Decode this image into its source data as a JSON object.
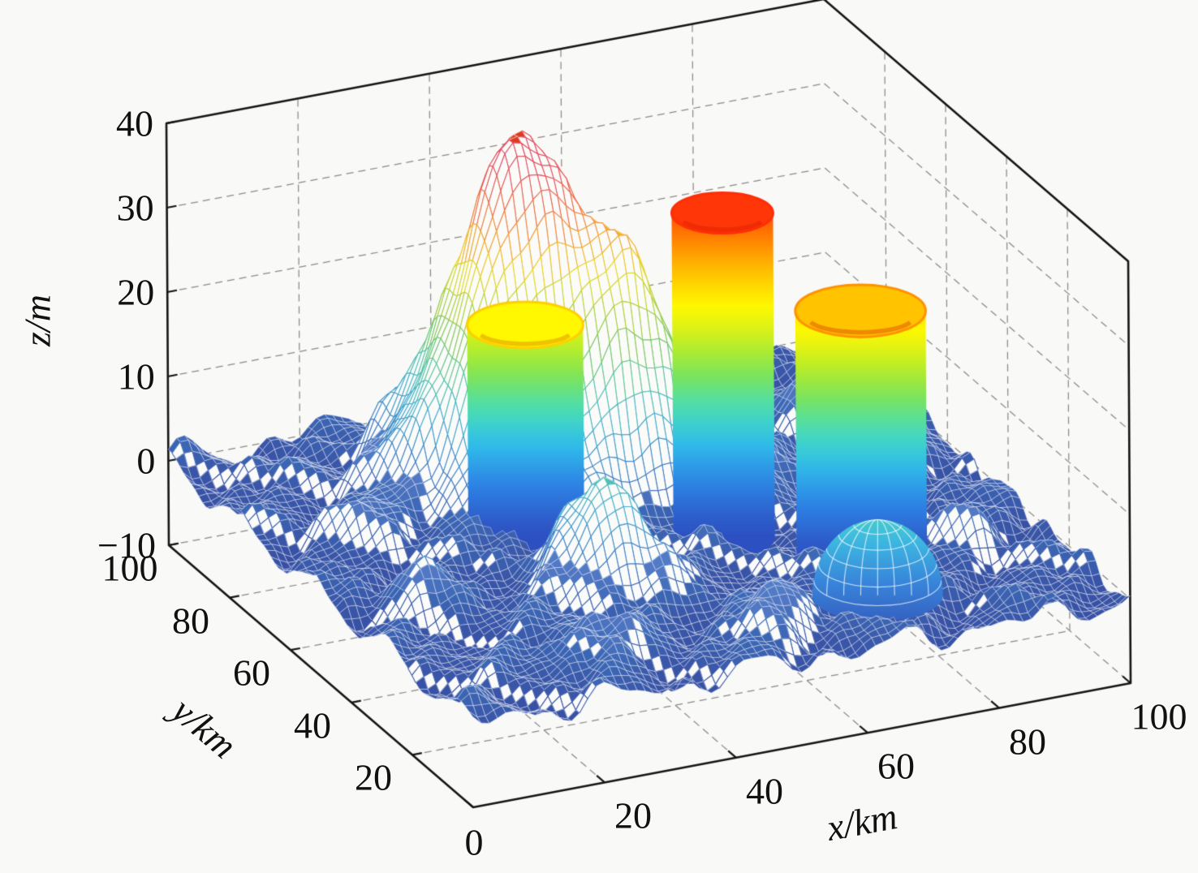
{
  "figure": {
    "background": "#f9f9f7",
    "box_color": "#151515",
    "grid_color": "#8a8a8a",
    "label_color": "#111111"
  },
  "chart_data": {
    "type": "3d_surface_mesh",
    "description": "3D terrain elevation mesh (jet colormap) with cylindrical obstacle columns and a dome obstacle in a MATLAB-style axes box with dashed grid",
    "xlabel": "x/km",
    "ylabel": "y/km",
    "zlabel": "z/m",
    "xlim": [
      0,
      100
    ],
    "ylim": [
      0,
      100
    ],
    "zlim": [
      -10,
      40
    ],
    "x_ticks": [
      0,
      20,
      40,
      60,
      80,
      100
    ],
    "y_ticks": [
      20,
      40,
      60,
      80,
      100
    ],
    "z_ticks": [
      -10,
      0,
      10,
      20,
      30,
      40
    ],
    "grid": true,
    "grid_style": "dashed",
    "legend": null,
    "colormap": "jet",
    "colormap_stops": [
      {
        "z": -10,
        "color": "#2E3F9C"
      },
      {
        "z": -4,
        "color": "#34499F"
      },
      {
        "z": 0,
        "color": "#3A57A9"
      },
      {
        "z": 5,
        "color": "#3F7EC6"
      },
      {
        "z": 10,
        "color": "#47B0CF"
      },
      {
        "z": 14,
        "color": "#59C6A8"
      },
      {
        "z": 18,
        "color": "#7EC860"
      },
      {
        "z": 22,
        "color": "#B3D23B"
      },
      {
        "z": 26,
        "color": "#EBDC26"
      },
      {
        "z": 30,
        "color": "#F8B21E"
      },
      {
        "z": 34,
        "color": "#F37E20"
      },
      {
        "z": 38,
        "color": "#E8471F"
      },
      {
        "z": 40,
        "color": "#DE3A1D"
      }
    ],
    "terrain": {
      "base_level": 0,
      "noise": [
        {
          "a": 1.5,
          "fx": 0.3,
          "px": 1.1,
          "fy": 0.26,
          "py": 0.6
        },
        {
          "a": 1.0,
          "fx": 0.55,
          "px": 3.0,
          "fy": 0.47,
          "py": 1.7
        },
        {
          "a": 0.7,
          "fx": 0.9,
          "px": 0.3,
          "fy": 0.8,
          "py": 4.0
        }
      ],
      "peaks": [
        {
          "x": 41,
          "y": 74,
          "height": 39.5,
          "sigma": 9
        },
        {
          "x": 55,
          "y": 64,
          "height": 19,
          "sigma": 6.5
        },
        {
          "x": 36,
          "y": 34,
          "height": 12,
          "sigma": 5.5
        }
      ],
      "bumps": [
        {
          "x": 25,
          "y": 14,
          "height": 5,
          "sigma": 4.5
        },
        {
          "x": 12,
          "y": 40,
          "height": 3.5,
          "sigma": 4
        },
        {
          "x": 50,
          "y": 11,
          "height": 5,
          "sigma": 4.5
        },
        {
          "x": 70,
          "y": 56,
          "height": 4,
          "sigma": 4.5
        },
        {
          "x": 88,
          "y": 28,
          "height": 3,
          "sigma": 3.5
        },
        {
          "x": 14,
          "y": 66,
          "height": 3,
          "sigma": 4
        },
        {
          "x": 28,
          "y": 88,
          "height": 3,
          "sigma": 4
        },
        {
          "x": 47,
          "y": 88,
          "height": 3,
          "sigma": 4
        },
        {
          "x": 86,
          "y": 77,
          "height": 3,
          "sigma": 4
        },
        {
          "x": 93,
          "y": 55,
          "height": 2.5,
          "sigma": 3
        }
      ]
    },
    "obstacles": {
      "cylinders": [
        {
          "x": 35,
          "y": 58,
          "radius": 8,
          "height": 24
        },
        {
          "x": 60,
          "y": 47,
          "radius": 7,
          "height": 37
        },
        {
          "x": 74,
          "y": 32,
          "radius": 9,
          "height": 28
        }
      ],
      "domes": [
        {
          "x": 69,
          "y": 16,
          "radius": 9,
          "height": 9
        }
      ]
    }
  }
}
